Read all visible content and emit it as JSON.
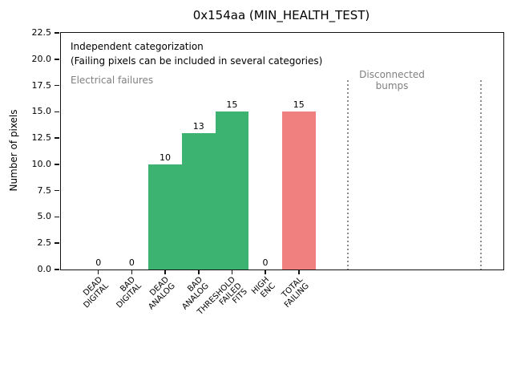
{
  "chart_data": {
    "type": "bar",
    "title": "0x154aa (MIN_HEALTH_TEST)",
    "xlabel": "",
    "ylabel": "Number of pixels",
    "ylim": [
      0,
      22.5
    ],
    "ytick_labels": [
      "0.0",
      "2.5",
      "5.0",
      "7.5",
      "10.0",
      "12.5",
      "15.0",
      "17.5",
      "20.0",
      "22.5"
    ],
    "grid": false,
    "legend": null,
    "categories": [
      "DEAD DIGITAL",
      "BAD DIGITAL",
      "DEAD ANALOG",
      "BAD ANALOG",
      "THRESHOLD FAILED FITS",
      "HIGH ENC",
      "TOTAL FAILING"
    ],
    "category_label_lines": [
      [
        "DEAD",
        "DIGITAL"
      ],
      [
        "BAD",
        "DIGITAL"
      ],
      [
        "DEAD",
        "ANALOG"
      ],
      [
        "BAD",
        "ANALOG"
      ],
      [
        "THRESHOLD",
        "FAILED",
        "FITS"
      ],
      [
        "HIGH",
        "ENC"
      ],
      [
        "TOTAL",
        "FAILING"
      ]
    ],
    "values": [
      0,
      0,
      10,
      13,
      15,
      0,
      15
    ],
    "bar_value_labels": [
      "0",
      "0",
      "10",
      "13",
      "15",
      "0",
      "15"
    ],
    "bar_colors": [
      "#3cb371",
      "#3cb371",
      "#3cb371",
      "#3cb371",
      "#3cb371",
      "#3cb371",
      "#f08080"
    ],
    "colors": {
      "green_bar": "#3cb371",
      "red_bar": "#f08080",
      "gray_text": "#7f7f7f",
      "separator": "#8c8c8c",
      "axis": "#121212"
    },
    "annotations": [
      {
        "id": "independent-categorization",
        "text": "Independent categorization",
        "color": "#000000"
      },
      {
        "id": "failing-note",
        "text": "(Failing pixels can be included in several categories)",
        "color": "#000000"
      },
      {
        "id": "electrical-failures",
        "text": "Electrical failures",
        "color": "#7f7f7f"
      },
      {
        "id": "disconnected-bumps",
        "text": "Disconnected\nbumps",
        "color": "#7f7f7f"
      }
    ],
    "separators": {
      "style": "dotted",
      "color": "#8c8c8c",
      "region_label": "Disconnected bumps",
      "positions_frac_of_axes_width": [
        0.6486,
        0.9493
      ],
      "top_data_value": 18
    }
  }
}
